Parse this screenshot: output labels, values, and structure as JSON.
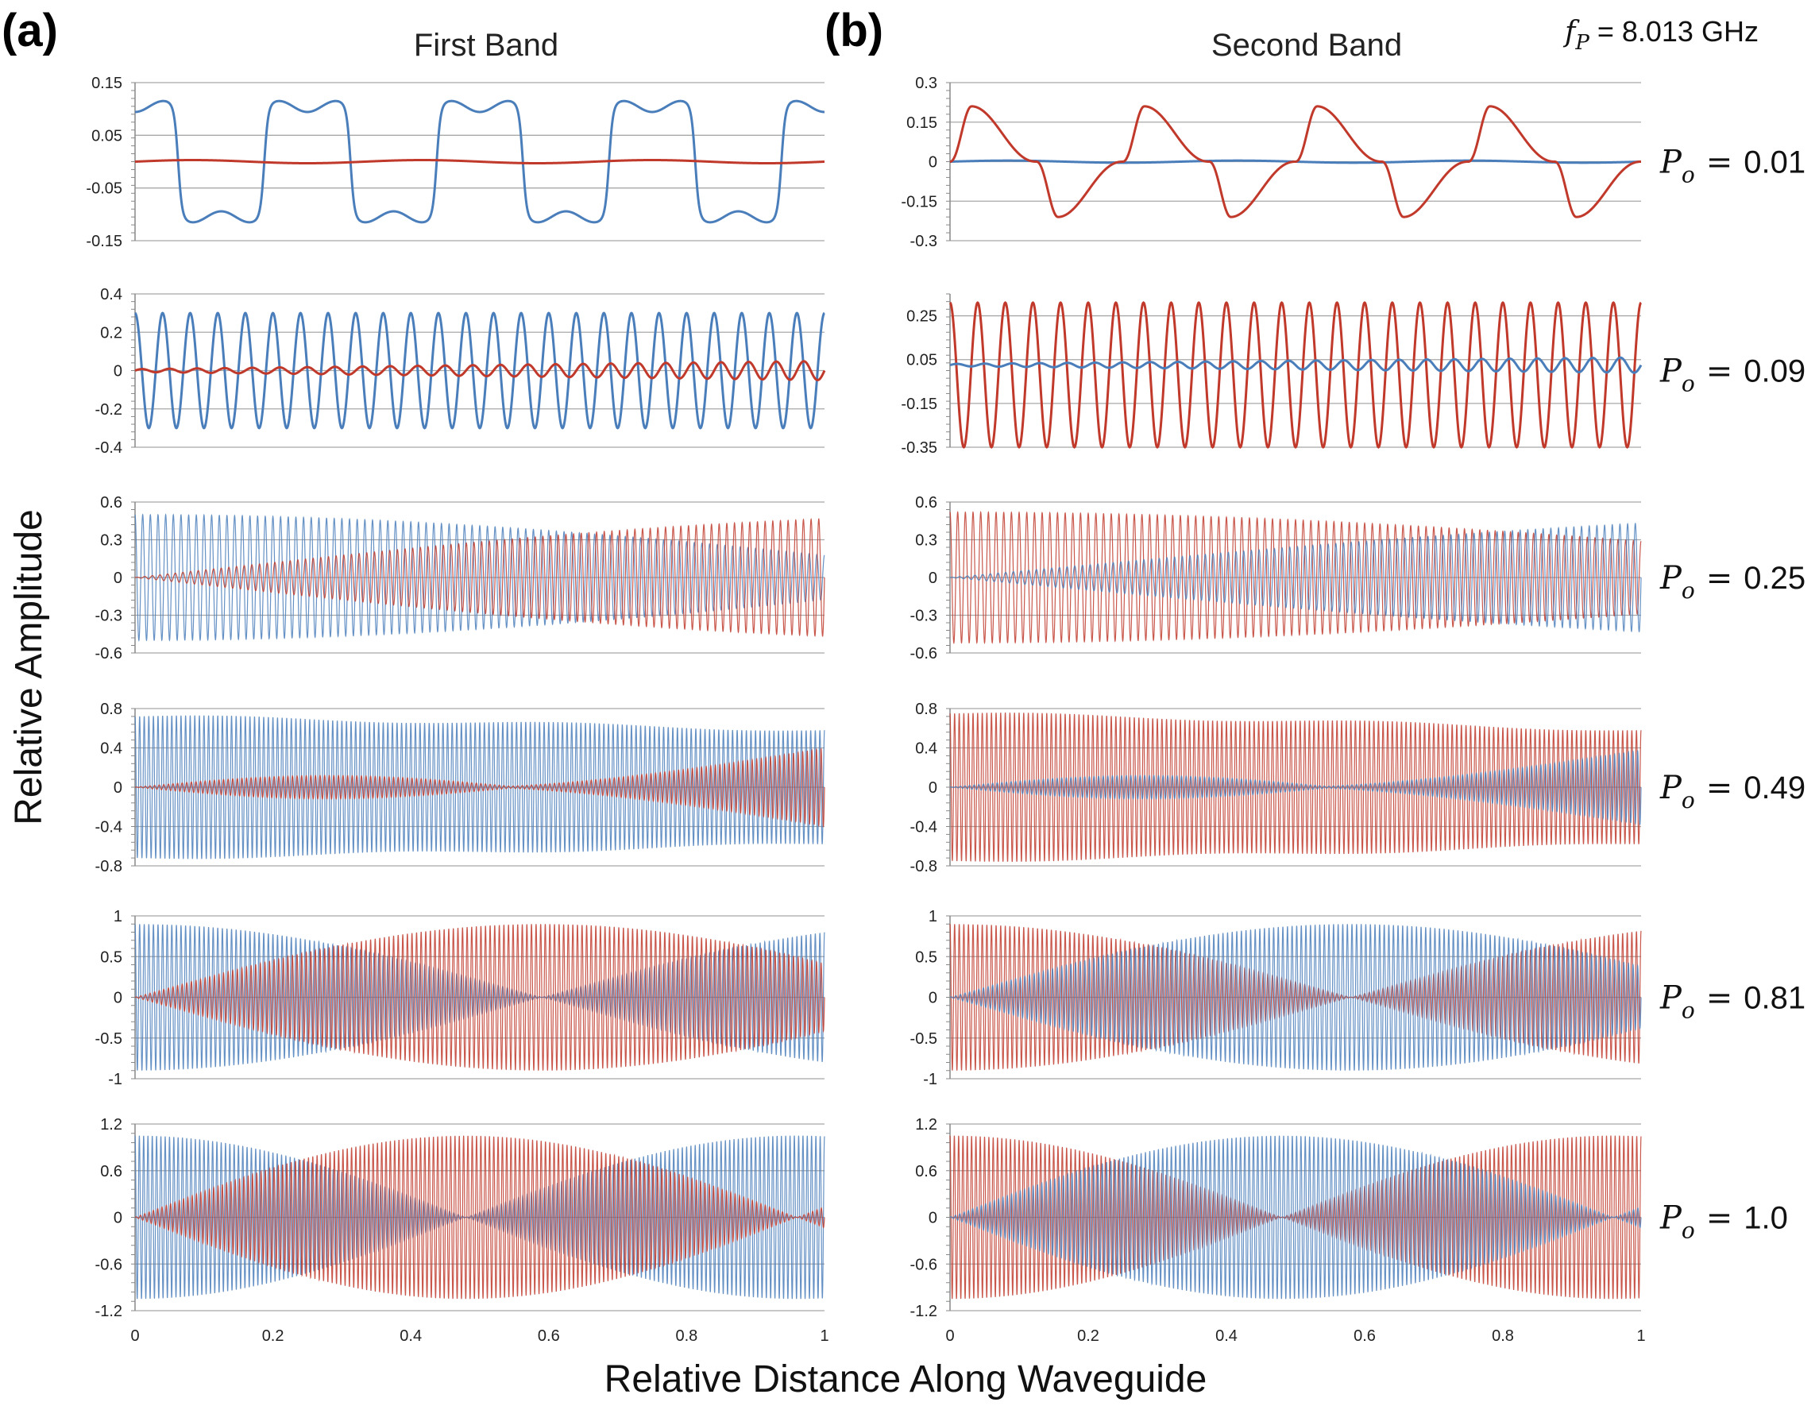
{
  "figure": {
    "panel_a": "(a)",
    "panel_b": "(b)",
    "col_a_title": "First Band",
    "col_b_title": "Second Band",
    "xlabel": "Relative Distance Along Waveguide",
    "ylabel": "Relative Amplitude",
    "fp_symbol": "f",
    "fp_sub": "P",
    "fp_value": "= 8.013 GHz",
    "po_symbol": "P",
    "po_sub": "o"
  },
  "colors": {
    "blue": "#4a7ebb",
    "red": "#c0392b",
    "grid": "#a8a8a8",
    "axis": "#888888"
  },
  "chart_data": [
    {
      "type": "line",
      "column": "First Band",
      "row": 1,
      "po": "0.01",
      "ylim": [
        -0.15,
        0.15
      ],
      "yticks": [
        "0.15",
        "0.05",
        "-0.05",
        "-0.15"
      ],
      "ytick_values": [
        0.15,
        0.05,
        -0.05,
        -0.15
      ],
      "series": [
        {
          "name": "blue",
          "model": "square",
          "cycles": 4,
          "amp": 0.11
        },
        {
          "name": "red",
          "model": "flat",
          "amp": 0.003
        }
      ]
    },
    {
      "type": "line",
      "column": "First Band",
      "row": 2,
      "po": "0.09",
      "ylim": [
        -0.4,
        0.4
      ],
      "yticks": [
        "0.4",
        "0.2",
        "0",
        "-0.2",
        "-0.4"
      ],
      "ytick_values": [
        0.4,
        0.2,
        0,
        -0.2,
        -0.4
      ],
      "series": [
        {
          "name": "blue",
          "model": "sine",
          "cycles": 25,
          "amp": 0.3
        },
        {
          "name": "red",
          "model": "sine-grow",
          "cycles": 25,
          "amp": 0.05
        }
      ]
    },
    {
      "type": "line",
      "column": "First Band",
      "row": 3,
      "po": "0.25",
      "ylim": [
        -0.6,
        0.6
      ],
      "yticks": [
        "0.6",
        "0.3",
        "0",
        "-0.3",
        "-0.6"
      ],
      "ytick_values": [
        0.6,
        0.3,
        0,
        -0.3,
        -0.6
      ],
      "series": [
        {
          "name": "blue",
          "model": "beat",
          "cycles": 90,
          "beat_period": 2.6,
          "amp": 0.5
        },
        {
          "name": "red",
          "model": "beat-partner",
          "cycles": 90,
          "beat_period": 2.6,
          "amp": 0.5
        }
      ]
    },
    {
      "type": "line",
      "column": "First Band",
      "row": 4,
      "po": "0.49",
      "ylim": [
        -0.8,
        0.8
      ],
      "yticks": [
        "0.8",
        "0.4",
        "0",
        "-0.4",
        "-0.8"
      ],
      "ytick_values": [
        0.8,
        0.4,
        0,
        -0.4,
        -0.8
      ],
      "series": [
        {
          "name": "blue",
          "model": "mod",
          "cycles": 150,
          "amp": 0.72,
          "floor": 0.58
        },
        {
          "name": "red",
          "model": "mod-partner",
          "cycles": 150,
          "amp": 0.72,
          "peaks": [
            0.28,
            1.0
          ],
          "peak_amp": [
            0.12,
            0.4
          ]
        }
      ]
    },
    {
      "type": "line",
      "column": "First Band",
      "row": 5,
      "po": "0.81",
      "ylim": [
        -1,
        1
      ],
      "yticks": [
        "1",
        "0.5",
        "0",
        "-0.5",
        "-1"
      ],
      "ytick_values": [
        1,
        0.5,
        0,
        -0.5,
        -1
      ],
      "series": [
        {
          "name": "blue",
          "model": "beat",
          "cycles": 150,
          "beat_period": 1.18,
          "amp": 0.9
        },
        {
          "name": "red",
          "model": "beat-partner",
          "cycles": 150,
          "beat_period": 1.18,
          "amp": 0.9
        }
      ]
    },
    {
      "type": "line",
      "column": "First Band",
      "row": 6,
      "po": "1.0",
      "ylim": [
        -1.2,
        1.2
      ],
      "yticks": [
        "1.2",
        "0.6",
        "0",
        "-0.6",
        "-1.2"
      ],
      "ytick_values": [
        1.2,
        0.6,
        0,
        -0.6,
        -1.2
      ],
      "series": [
        {
          "name": "blue",
          "model": "beat",
          "cycles": 160,
          "beat_period": 0.96,
          "amp": 1.05
        },
        {
          "name": "red",
          "model": "beat-partner",
          "cycles": 160,
          "beat_period": 0.96,
          "amp": 1.05
        }
      ]
    },
    {
      "type": "line",
      "column": "Second Band",
      "row": 1,
      "po": "0.01",
      "ylim": [
        -0.3,
        0.3
      ],
      "yticks": [
        "0.3",
        "0.15",
        "0",
        "-0.15",
        "-0.3"
      ],
      "ytick_values": [
        0.3,
        0.15,
        0,
        -0.15,
        -0.3
      ],
      "series": [
        {
          "name": "blue",
          "model": "flat",
          "amp": 0.004
        },
        {
          "name": "red",
          "model": "cusp",
          "cycles": 4,
          "amp": 0.21
        }
      ]
    },
    {
      "type": "line",
      "column": "Second Band",
      "row": 2,
      "po": "0.09",
      "ylim": [
        -0.35,
        0.35
      ],
      "yticks": [
        "0.25",
        "0.05",
        "-0.15",
        "-0.35"
      ],
      "ytick_values": [
        0.25,
        0.05,
        -0.15,
        -0.35
      ],
      "series": [
        {
          "name": "red",
          "model": "sine",
          "cycles": 25,
          "amp": 0.33,
          "offset": -0.02
        },
        {
          "name": "blue",
          "model": "sine-grow",
          "cycles": 25,
          "amp": 0.035,
          "offset": 0.025
        }
      ]
    },
    {
      "type": "line",
      "column": "Second Band",
      "row": 3,
      "po": "0.25",
      "ylim": [
        -0.6,
        0.6
      ],
      "yticks": [
        "0.6",
        "0.3",
        "0",
        "-0.3",
        "-0.6"
      ],
      "ytick_values": [
        0.6,
        0.3,
        0,
        -0.3,
        -0.6
      ],
      "series": [
        {
          "name": "red",
          "model": "beat",
          "cycles": 90,
          "beat_period": 3.2,
          "amp": 0.52
        },
        {
          "name": "blue",
          "model": "beat-partner",
          "cycles": 90,
          "beat_period": 3.2,
          "amp": 0.52
        }
      ]
    },
    {
      "type": "line",
      "column": "Second Band",
      "row": 4,
      "po": "0.49",
      "ylim": [
        -0.8,
        0.8
      ],
      "yticks": [
        "0.8",
        "0.4",
        "0",
        "-0.4",
        "-0.8"
      ],
      "ytick_values": [
        0.8,
        0.4,
        0,
        -0.4,
        -0.8
      ],
      "series": [
        {
          "name": "red",
          "model": "mod",
          "cycles": 150,
          "amp": 0.75,
          "floor": 0.58
        },
        {
          "name": "blue",
          "model": "mod-partner",
          "cycles": 150,
          "amp": 0.75,
          "peaks": [
            0.28,
            1.0
          ],
          "peak_amp": [
            0.12,
            0.38
          ]
        }
      ]
    },
    {
      "type": "line",
      "column": "Second Band",
      "row": 5,
      "po": "0.81",
      "ylim": [
        -1,
        1
      ],
      "yticks": [
        "1",
        "0.5",
        "0",
        "-0.5",
        "-1"
      ],
      "ytick_values": [
        1,
        0.5,
        0,
        -0.5,
        -1
      ],
      "series": [
        {
          "name": "red",
          "model": "beat",
          "cycles": 150,
          "beat_period": 1.16,
          "amp": 0.9
        },
        {
          "name": "blue",
          "model": "beat-partner",
          "cycles": 150,
          "beat_period": 1.16,
          "amp": 0.9
        }
      ]
    },
    {
      "type": "line",
      "column": "Second Band",
      "row": 6,
      "po": "1.0",
      "ylim": [
        -1.2,
        1.2
      ],
      "yticks": [
        "1.2",
        "0.6",
        "0",
        "-0.6",
        "-1.2"
      ],
      "ytick_values": [
        1.2,
        0.6,
        0,
        -0.6,
        -1.2
      ],
      "series": [
        {
          "name": "red",
          "model": "beat",
          "cycles": 160,
          "beat_period": 0.96,
          "amp": 1.05
        },
        {
          "name": "blue",
          "model": "beat-partner",
          "cycles": 160,
          "beat_period": 0.96,
          "amp": 1.05
        }
      ]
    }
  ],
  "xticks": [
    "0",
    "0.2",
    "0.4",
    "0.6",
    "0.8",
    "1"
  ],
  "xtick_values": [
    0,
    0.2,
    0.4,
    0.6,
    0.8,
    1
  ],
  "xlim": [
    0,
    1
  ]
}
